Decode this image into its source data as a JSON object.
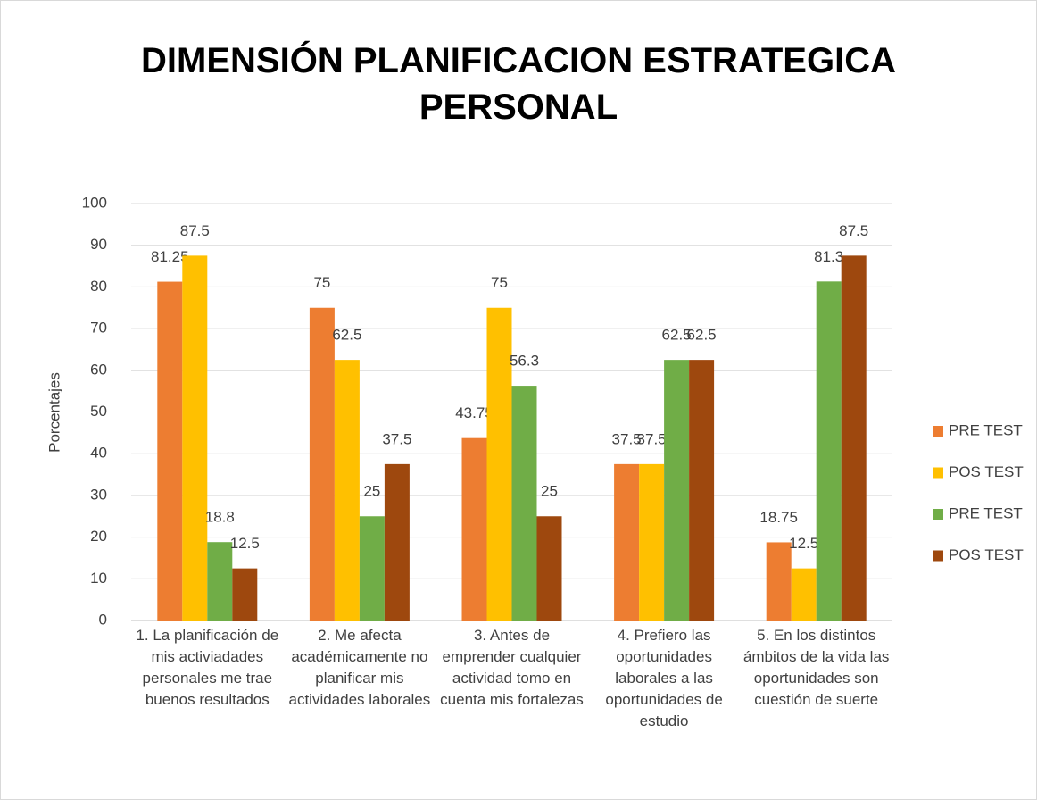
{
  "chart_data": {
    "type": "bar",
    "title": "DIMENSIÓN PLANIFICACION ESTRATEGICA PERSONAL",
    "ylabel": "Porcentajes",
    "categories": [
      "1. La planificación de mis activiadades personales me trae buenos resultados",
      "2. Me afecta académicamente no planificar mis actividades laborales",
      "3. Antes de emprender cualquier actividad tomo en cuenta mis fortalezas",
      "4. Prefiero las oportunidades laborales a las oportunidades de estudio",
      "5. En los distintos ámbitos de la vida las oportunidades son cuestión de suerte"
    ],
    "series": [
      {
        "name": "PRE TEST",
        "color": "#ED7D31",
        "values": [
          81.25,
          75,
          43.75,
          37.5,
          18.75
        ]
      },
      {
        "name": "POS TEST",
        "color": "#FFC000",
        "values": [
          87.5,
          62.5,
          75,
          37.5,
          12.5
        ]
      },
      {
        "name": "PRE TEST",
        "color": "#70AD47",
        "values": [
          18.8,
          25,
          56.3,
          62.5,
          81.3
        ]
      },
      {
        "name": "POS TEST",
        "color": "#9E480E",
        "values": [
          12.5,
          37.5,
          25,
          62.5,
          87.5
        ]
      }
    ],
    "ylim": [
      0,
      100
    ],
    "yticks": [
      0,
      10,
      20,
      30,
      40,
      50,
      60,
      70,
      80,
      90,
      100
    ],
    "grid": true,
    "legend": "right"
  }
}
